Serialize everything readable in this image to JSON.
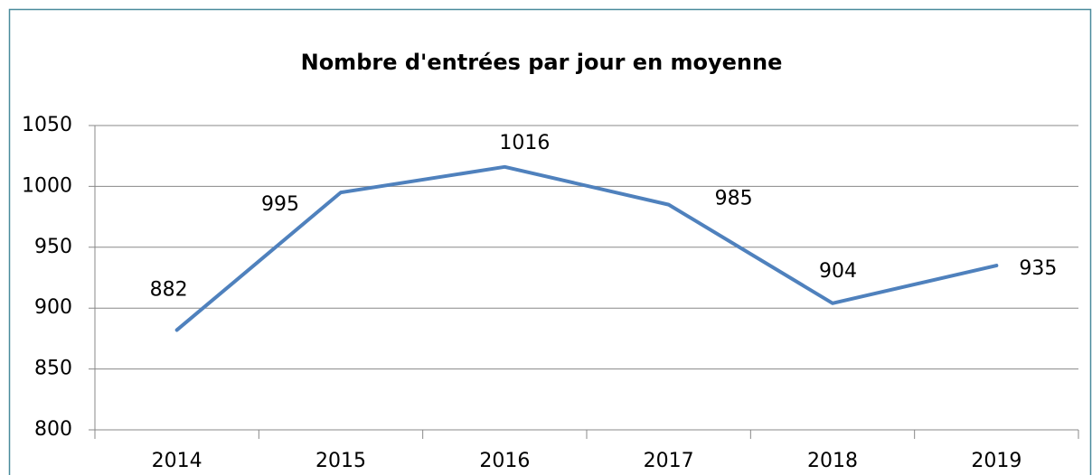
{
  "chart_data": {
    "type": "line",
    "title": "Nombre d'entrées par jour en moyenne",
    "categories": [
      "2014",
      "2015",
      "2016",
      "2017",
      "2018",
      "2019"
    ],
    "values": [
      882,
      995,
      1016,
      985,
      904,
      935
    ],
    "color": "#4f81bd",
    "ylim": [
      800,
      1050
    ],
    "yticks": [
      800,
      850,
      900,
      950,
      1000,
      1050
    ],
    "grid": true
  }
}
